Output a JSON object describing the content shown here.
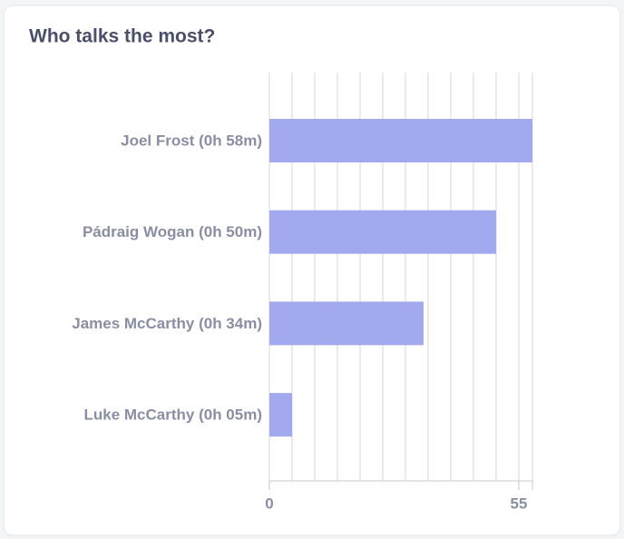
{
  "chart_data": {
    "type": "bar",
    "orientation": "horizontal",
    "title": "Who talks the most?",
    "categories": [
      "Joel Frost (0h 58m)",
      "Pádraig Wogan (0h 50m)",
      "James McCarthy (0h 34m)",
      "Luke McCarthy (0h 05m)"
    ],
    "values": [
      58,
      50,
      34,
      5
    ],
    "color": "#a3a9ef",
    "xlim": [
      0,
      58
    ],
    "xticks": [
      0,
      55
    ],
    "grid_lines": [
      0,
      5,
      10,
      15,
      20,
      25,
      30,
      35,
      40,
      45,
      50,
      55,
      58
    ],
    "grid": true
  }
}
